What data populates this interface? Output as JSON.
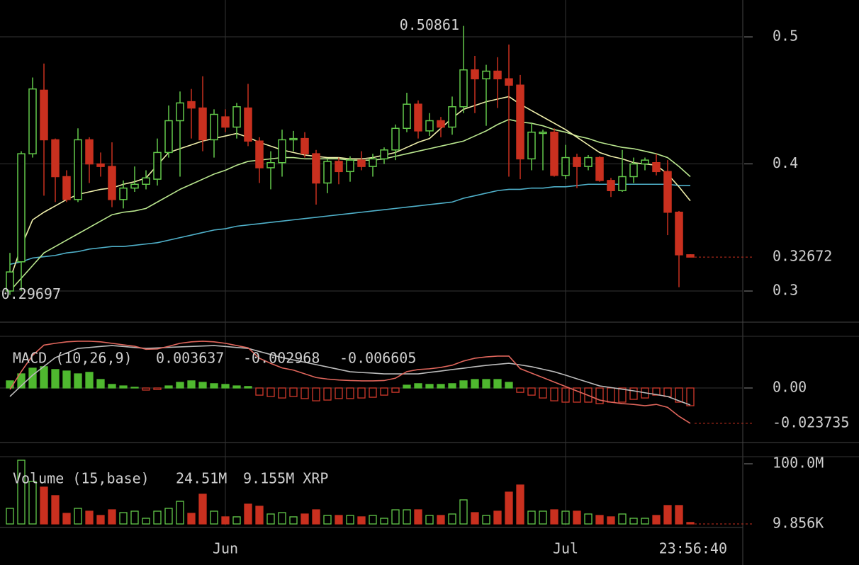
{
  "chart_data": [
    {
      "type": "candlestick",
      "categories": [
        null,
        null,
        null,
        null,
        null,
        null,
        null,
        null,
        null,
        null,
        null,
        null,
        null,
        null,
        null,
        null,
        null,
        null,
        null,
        "Jun",
        null,
        null,
        null,
        null,
        null,
        null,
        null,
        null,
        null,
        null,
        null,
        null,
        null,
        null,
        null,
        null,
        null,
        null,
        null,
        null,
        null,
        null,
        null,
        null,
        null,
        null,
        null,
        null,
        null,
        "Jul",
        null,
        null,
        null,
        null,
        null,
        null,
        null,
        null,
        null,
        null,
        null
      ],
      "open": [
        0.3,
        0.323,
        0.408,
        0.458,
        0.419,
        0.39,
        0.372,
        0.419,
        0.4,
        0.398,
        0.372,
        0.381,
        0.384,
        0.388,
        0.409,
        0.434,
        0.449,
        0.444,
        0.419,
        0.437,
        0.429,
        0.444,
        0.418,
        0.397,
        0.401,
        0.419,
        0.42,
        0.408,
        0.385,
        0.402,
        0.394,
        0.403,
        0.398,
        0.404,
        0.411,
        0.428,
        0.447,
        0.426,
        0.434,
        0.429,
        0.445,
        0.474,
        0.467,
        0.473,
        0.467,
        0.462,
        0.404,
        0.424,
        0.425,
        0.391,
        0.405,
        0.398,
        0.405,
        0.387,
        0.379,
        0.39,
        0.4,
        0.401,
        0.394,
        0.362,
        0.3285
      ],
      "high": [
        0.33,
        0.41,
        0.468,
        0.479,
        0.42,
        0.395,
        0.428,
        0.421,
        0.409,
        0.417,
        0.387,
        0.398,
        0.395,
        0.42,
        0.446,
        0.457,
        0.459,
        0.469,
        0.443,
        0.443,
        0.448,
        0.463,
        0.421,
        0.41,
        0.427,
        0.426,
        0.425,
        0.411,
        0.404,
        0.405,
        0.406,
        0.41,
        0.408,
        0.413,
        0.431,
        0.456,
        0.45,
        0.44,
        0.437,
        0.453,
        0.50861,
        0.485,
        0.478,
        0.484,
        0.494,
        0.47,
        0.432,
        0.427,
        0.428,
        0.415,
        0.408,
        0.407,
        0.406,
        0.389,
        0.411,
        0.405,
        0.405,
        0.408,
        0.403,
        0.363,
        0.329
      ],
      "low": [
        0.29697,
        0.3,
        0.405,
        0.375,
        0.37,
        0.37,
        0.37,
        0.385,
        0.39,
        0.366,
        0.365,
        0.378,
        0.38,
        0.383,
        0.405,
        0.39,
        0.42,
        0.41,
        0.405,
        0.425,
        0.42,
        0.414,
        0.385,
        0.38,
        0.39,
        0.41,
        0.405,
        0.368,
        0.377,
        0.384,
        0.386,
        0.395,
        0.39,
        0.4,
        0.403,
        0.425,
        0.42,
        0.422,
        0.421,
        0.423,
        0.44,
        0.44,
        0.43,
        0.444,
        0.39,
        0.388,
        0.395,
        0.395,
        0.39,
        0.388,
        0.381,
        0.395,
        0.386,
        0.374,
        0.378,
        0.385,
        0.395,
        0.391,
        0.344,
        0.303,
        0.3265
      ],
      "close": [
        0.315,
        0.408,
        0.459,
        0.419,
        0.39,
        0.372,
        0.419,
        0.4,
        0.398,
        0.372,
        0.381,
        0.384,
        0.389,
        0.409,
        0.434,
        0.448,
        0.444,
        0.419,
        0.439,
        0.429,
        0.445,
        0.418,
        0.397,
        0.401,
        0.419,
        0.42,
        0.408,
        0.385,
        0.402,
        0.394,
        0.403,
        0.398,
        0.404,
        0.411,
        0.428,
        0.447,
        0.426,
        0.434,
        0.429,
        0.445,
        0.474,
        0.467,
        0.473,
        0.467,
        0.462,
        0.404,
        0.425,
        0.425,
        0.391,
        0.405,
        0.398,
        0.405,
        0.387,
        0.379,
        0.39,
        0.4,
        0.403,
        0.394,
        0.362,
        0.3285,
        0.32672
      ],
      "up_color": "#63c94a",
      "down_color": "#c9301f",
      "series": [
        {
          "color": "#4fb0c9",
          "values": [
            0.321,
            0.323,
            0.326,
            0.327,
            0.328,
            0.33,
            0.331,
            0.333,
            0.334,
            0.335,
            0.335,
            0.336,
            0.337,
            0.338,
            0.34,
            0.342,
            0.344,
            0.346,
            0.348,
            0.349,
            0.351,
            0.352,
            0.353,
            0.354,
            0.355,
            0.356,
            0.357,
            0.358,
            0.359,
            0.36,
            0.361,
            0.362,
            0.363,
            0.364,
            0.365,
            0.366,
            0.367,
            0.368,
            0.369,
            0.37,
            0.373,
            0.375,
            0.377,
            0.379,
            0.38,
            0.38,
            0.381,
            0.381,
            0.382,
            0.382,
            0.383,
            0.384,
            0.384,
            0.384,
            0.384,
            0.384,
            0.384,
            0.384,
            0.384,
            0.383,
            0.383
          ]
        },
        {
          "color": "#b9e68e",
          "values": [
            0.3,
            0.31,
            0.32,
            0.33,
            0.335,
            0.34,
            0.345,
            0.35,
            0.355,
            0.36,
            0.362,
            0.363,
            0.365,
            0.37,
            0.375,
            0.38,
            0.384,
            0.388,
            0.392,
            0.395,
            0.399,
            0.402,
            0.403,
            0.404,
            0.405,
            0.405,
            0.404,
            0.404,
            0.404,
            0.404,
            0.403,
            0.403,
            0.403,
            0.404,
            0.406,
            0.408,
            0.41,
            0.412,
            0.414,
            0.416,
            0.418,
            0.422,
            0.426,
            0.431,
            0.435,
            0.433,
            0.432,
            0.43,
            0.427,
            0.425,
            0.422,
            0.42,
            0.417,
            0.415,
            0.413,
            0.412,
            0.41,
            0.408,
            0.405,
            0.398,
            0.39
          ]
        },
        {
          "color": "#eeeeaa",
          "values": [
            0.309,
            0.335,
            0.356,
            0.362,
            0.367,
            0.372,
            0.376,
            0.378,
            0.38,
            0.381,
            0.384,
            0.386,
            0.389,
            0.399,
            0.409,
            0.412,
            0.415,
            0.418,
            0.42,
            0.422,
            0.424,
            0.421,
            0.417,
            0.414,
            0.411,
            0.409,
            0.407,
            0.406,
            0.405,
            0.405,
            0.404,
            0.404,
            0.405,
            0.407,
            0.409,
            0.413,
            0.417,
            0.42,
            0.428,
            0.436,
            0.443,
            0.446,
            0.449,
            0.451,
            0.453,
            0.447,
            0.442,
            0.437,
            0.432,
            0.427,
            0.421,
            0.415,
            0.409,
            0.406,
            0.404,
            0.401,
            0.4,
            0.399,
            0.392,
            0.382,
            0.371
          ]
        }
      ],
      "ylim": [
        0.2755,
        0.529
      ],
      "yticks": [
        0.3,
        0.4,
        0.5
      ],
      "grid": true,
      "max_label": 0.50861,
      "min_label": 0.29697,
      "last_value": 0.32672,
      "cursor_time": "23:56:40"
    },
    {
      "type": "macd",
      "title": "MACD (10,26,9)",
      "readouts": [
        {
          "value": 0.003637,
          "color": "#6ccf4a"
        },
        {
          "value": -0.002968,
          "color": "#e0665c"
        },
        {
          "value": -0.006605,
          "color": "#cccccc"
        }
      ],
      "values": [
        0.0048,
        0.0095,
        0.0133,
        0.0143,
        0.0124,
        0.0114,
        0.0095,
        0.0105,
        0.0057,
        0.0024,
        0.0014,
        0.0005,
        -0.0014,
        -0.001,
        0.0014,
        0.0038,
        0.0048,
        0.0038,
        0.0029,
        0.0024,
        0.0014,
        0.001,
        -0.0048,
        -0.0057,
        -0.0067,
        -0.0057,
        -0.0071,
        -0.0086,
        -0.0081,
        -0.0071,
        -0.0071,
        -0.0067,
        -0.0062,
        -0.0048,
        -0.0029,
        0.0019,
        0.0029,
        0.0024,
        0.0024,
        0.0029,
        0.0048,
        0.0057,
        0.0057,
        0.0057,
        0.0038,
        -0.0029,
        -0.0048,
        -0.0067,
        -0.0086,
        -0.0095,
        -0.0095,
        -0.0095,
        -0.0105,
        -0.0095,
        -0.0095,
        -0.0076,
        -0.0067,
        -0.0048,
        -0.0057,
        -0.0095,
        -0.0119
      ],
      "up_color": "#4fb82f",
      "down_color": "#d0392b",
      "series": [
        {
          "color": "#bbbbbb",
          "values": [
            -0.0057,
            0.0015,
            0.0086,
            0.0145,
            0.0204,
            0.0235,
            0.0266,
            0.0272,
            0.0279,
            0.0285,
            0.0279,
            0.0272,
            0.0266,
            0.0269,
            0.0273,
            0.0276,
            0.0279,
            0.0282,
            0.0285,
            0.0279,
            0.0272,
            0.0266,
            0.0245,
            0.0225,
            0.0204,
            0.0188,
            0.0173,
            0.0157,
            0.0141,
            0.0125,
            0.0109,
            0.0104,
            0.01,
            0.0095,
            0.0095,
            0.0095,
            0.0095,
            0.0105,
            0.0114,
            0.0124,
            0.0133,
            0.0143,
            0.0152,
            0.0159,
            0.0166,
            0.0155,
            0.0143,
            0.0126,
            0.0109,
            0.0086,
            0.0062,
            0.0038,
            0.0014,
            0.0003,
            -0.0008,
            -0.0019,
            -0.0032,
            -0.0044,
            -0.0057,
            -0.0086,
            -0.0114
          ]
        },
        {
          "color": "#e0665c",
          "values": [
            -0.001,
            0.011,
            0.0219,
            0.0288,
            0.03,
            0.031,
            0.0314,
            0.0314,
            0.031,
            0.03,
            0.029,
            0.028,
            0.026,
            0.0262,
            0.028,
            0.03,
            0.031,
            0.0314,
            0.031,
            0.03,
            0.0285,
            0.027,
            0.02,
            0.0165,
            0.0135,
            0.012,
            0.0095,
            0.007,
            0.006,
            0.0054,
            0.005,
            0.0048,
            0.0048,
            0.005,
            0.0066,
            0.011,
            0.0124,
            0.0129,
            0.0138,
            0.0153,
            0.0181,
            0.02,
            0.0209,
            0.0214,
            0.0214,
            0.013,
            0.01,
            0.007,
            0.004,
            0.001,
            -0.002,
            -0.005,
            -0.0081,
            -0.0095,
            -0.0105,
            -0.011,
            -0.0119,
            -0.011,
            -0.013,
            -0.019,
            -0.023735
          ]
        }
      ],
      "ylim": [
        -0.0366,
        0.0347
      ],
      "yticks": [
        {
          "value": 0,
          "label": "0.00"
        }
      ],
      "grid": true,
      "last_value": -0.023735
    },
    {
      "type": "volume",
      "title": "Volume (15,base)",
      "readouts": [
        {
          "value": "24.51M",
          "color": "#d9433a"
        },
        {
          "value": "9.155M XRP",
          "color": "#cccccc"
        }
      ],
      "values": [
        25.9,
        105.9,
        70.6,
        61.2,
        47.1,
        17.6,
        25.9,
        21.2,
        14.1,
        23.5,
        18.8,
        21.2,
        9.4,
        21.2,
        25.9,
        37.6,
        17.6,
        49.4,
        21.2,
        11.8,
        11.8,
        32.9,
        29.4,
        16.5,
        18.8,
        11.8,
        16.5,
        23.5,
        14.1,
        14.1,
        14.1,
        11.8,
        14.1,
        9.4,
        23.5,
        23.5,
        23.5,
        14.1,
        14.1,
        16.5,
        40,
        18.8,
        14.1,
        21.2,
        52.9,
        64.7,
        21.2,
        21.2,
        23.5,
        21.2,
        21.2,
        16.5,
        14.1,
        11.8,
        16.5,
        9.4,
        9.4,
        14.1,
        30.6,
        30.6,
        2.4
      ],
      "ylim": [
        0,
        111.8
      ],
      "yticks": [
        {
          "value": 100,
          "label": "100.0M"
        }
      ],
      "last_value": {
        "value": 0.009856,
        "label": "9.856K"
      }
    }
  ]
}
